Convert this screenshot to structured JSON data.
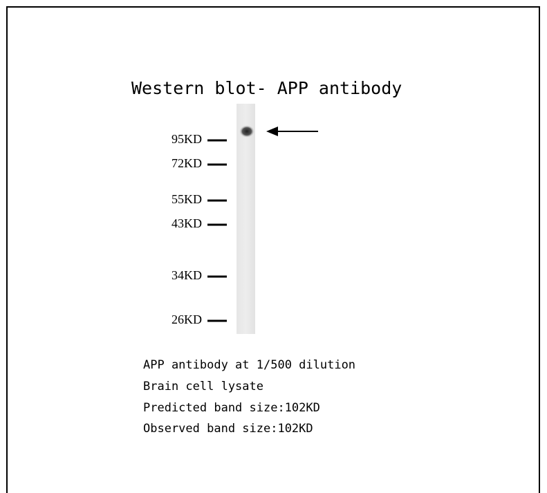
{
  "title": "Western blot- APP antibody",
  "markers": [
    "95KD",
    "72KD",
    "55KD",
    "43KD",
    "34KD",
    "26KD"
  ],
  "notes": [
    "APP antibody at 1/500 dilution",
    "Brain cell lysate",
    "Predicted band size:102KD",
    "Observed band size:102KD"
  ]
}
